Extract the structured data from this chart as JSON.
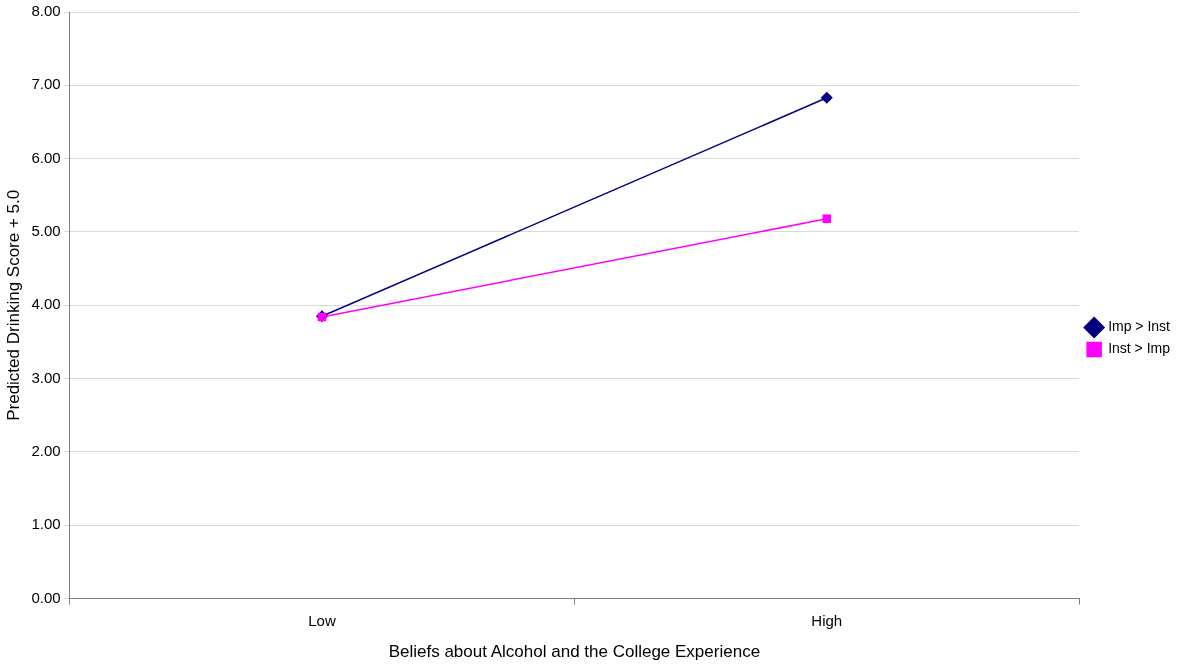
{
  "chart_data": {
    "type": "line",
    "xlabel": "Beliefs about Alcohol and the College Experience",
    "ylabel": "Predicted Drinking Score + 5.0",
    "categories": [
      "Low",
      "High"
    ],
    "series": [
      {
        "name": "Imp > Inst",
        "color": "#000080",
        "marker": "diamond",
        "values": [
          3.85,
          6.83
        ]
      },
      {
        "name": "Inst > Imp",
        "color": "#ff00ff",
        "marker": "square",
        "values": [
          3.84,
          5.18
        ]
      }
    ],
    "ylim": [
      0,
      8
    ],
    "yticks": [
      {
        "value": 0,
        "label": "0.00"
      },
      {
        "value": 1,
        "label": "1.00"
      },
      {
        "value": 2,
        "label": "2.00"
      },
      {
        "value": 3,
        "label": "3.00"
      },
      {
        "value": 4,
        "label": "4.00"
      },
      {
        "value": 5,
        "label": "5.00"
      },
      {
        "value": 6,
        "label": "6.00"
      },
      {
        "value": 7,
        "label": "7.00"
      },
      {
        "value": 8,
        "label": "8.00"
      }
    ],
    "grid": "y",
    "legend": "right",
    "line_style": "solid"
  }
}
